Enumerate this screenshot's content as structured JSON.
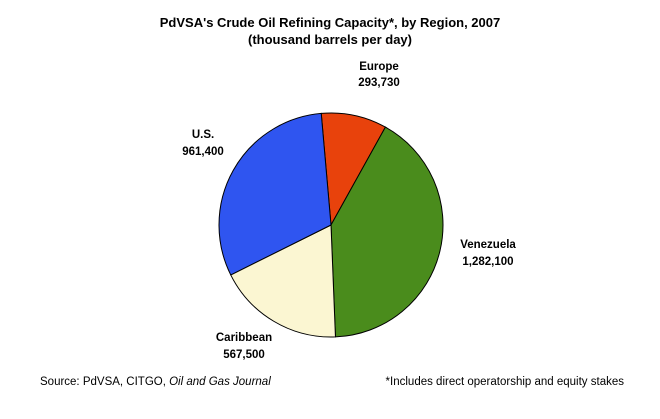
{
  "chart_data": {
    "type": "pie",
    "title": "PdVSA's Crude Oil Refining Capacity*, by Region, 2007",
    "subtitle": "(thousand barrels per day)",
    "slices": [
      {
        "name": "Europe",
        "value": 293730,
        "value_label": "293,730",
        "color": "#e8420c"
      },
      {
        "name": "Venezuela",
        "value": 1282100,
        "value_label": "1,282,100",
        "color": "#4a8c1c"
      },
      {
        "name": "Caribbean",
        "value": 567500,
        "value_label": "567,500",
        "color": "#fbf6d2"
      },
      {
        "name": "U.S.",
        "value": 961400,
        "value_label": "961,400",
        "color": "#2f55f0"
      }
    ]
  },
  "footer": {
    "source_prefix": "Source: PdVSA, CITGO, ",
    "source_italic": "Oil and Gas Journal",
    "note": "*Includes direct operatorship and equity stakes"
  }
}
